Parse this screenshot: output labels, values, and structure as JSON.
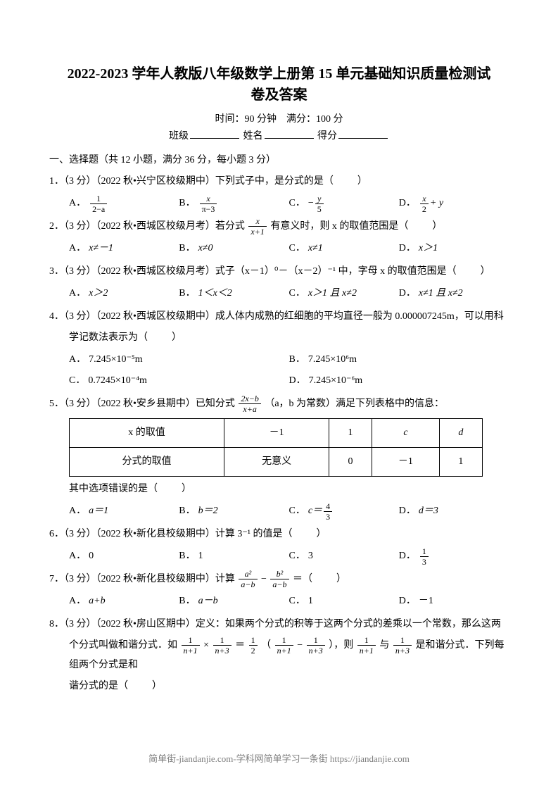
{
  "title_line1": "2022-2023 学年人教版八年级数学上册第 15 单元基础知识质量检测试",
  "title_line2": "卷及答案",
  "time_label": "时间：",
  "time_value": "90 分钟",
  "fullmark_label": "满分：",
  "fullmark_value": "100 分",
  "class_label": "班级",
  "name_label": "姓名",
  "score_label": "得分",
  "section1": "一、选择题（共 12 小题，满分 36 分，每小题 3 分）",
  "blank_paren": "（　　）",
  "q1": {
    "stem": "1．（3 分）（2022 秋•兴宁区校级期中）下列式子中，是分式的是",
    "A_label": "A．",
    "A_num": "1",
    "A_den": "2−a",
    "B_label": "B．",
    "B_num": "x",
    "B_den": "π−3",
    "C_label": "C．",
    "C_prefix": "−",
    "C_num": "y",
    "C_den": "5",
    "D_label": "D．",
    "D_num": "x",
    "D_den": "2",
    "D_suffix": " + y"
  },
  "q2": {
    "stem_a": "2．（3 分）（2022 秋•西城区校级月考）若分式 ",
    "frac_num": "x",
    "frac_den": "x+1",
    "stem_b": " 有意义时，则 x 的取值范围是",
    "A_label": "A．",
    "A": "x≠－1",
    "B_label": "B．",
    "B": "x≠0",
    "C_label": "C．",
    "C": "x≠1",
    "D_label": "D．",
    "D": "x＞1"
  },
  "q3": {
    "stem": "3．（3 分）（2022 秋•西城区校级月考）式子（x－1）⁰－（x－2）⁻¹ 中，字母 x 的取值范围是",
    "A_label": "A．",
    "A": "x＞2",
    "B_label": "B．",
    "B": "1＜x＜2",
    "C_label": "C．",
    "C": "x＞1 且 x≠2",
    "D_label": "D．",
    "D": "x≠1 且 x≠2"
  },
  "q4": {
    "stem1": "4．（3 分）（2022 秋•西城区校级期中）成人体内成熟的红细胞的平均直径一般为 0.000007245m，可以用科",
    "stem2": "学记数法表示为",
    "A_label": "A．",
    "A": "7.245×10⁻⁵m",
    "B_label": "B．",
    "B": "7.245×10⁶m",
    "C_label": "C．",
    "C": "0.7245×10⁻⁴m",
    "D_label": "D．",
    "D": "7.245×10⁻⁶m"
  },
  "q5": {
    "stem_a": "5．（3 分）（2022 秋•安乡县期中）已知分式 ",
    "frac_num": "2x−b",
    "frac_den": "x+a",
    "stem_b": "（a，b 为常数）满足下列表格中的信息：",
    "table": {
      "columns": [
        "x 的取值",
        "－1",
        "1",
        "c",
        "d"
      ],
      "row2": [
        "分式的取值",
        "无意义",
        "0",
        "－1",
        "1"
      ],
      "col_widths": [
        "22%",
        "19.5%",
        "19.5%",
        "19.5%",
        "19.5%"
      ]
    },
    "tail": "其中选项错误的是",
    "A_label": "A．",
    "A": "a＝1",
    "B_label": "B．",
    "B": "b＝2",
    "C_label": "C．",
    "C_prefix": "c＝",
    "C_num": "4",
    "C_den": "3",
    "D_label": "D．",
    "D": "d＝3"
  },
  "q6": {
    "stem": "6．（3 分）（2022 秋•新化县校级期中）计算 3⁻¹ 的值是",
    "A_label": "A．",
    "A": "0",
    "B_label": "B．",
    "B": "1",
    "C_label": "C．",
    "C": "3",
    "D_label": "D．",
    "D_num": "1",
    "D_den": "3"
  },
  "q7": {
    "stem_a": "7．（3 分）（2022 秋•新化县校级期中）计算 ",
    "f1_num": "a²",
    "f1_den": "a−b",
    "minus": " − ",
    "f2_num": "b²",
    "f2_den": "a−b",
    "stem_b": " ＝",
    "A_label": "A．",
    "A": "a+b",
    "B_label": "B．",
    "B": "a－b",
    "C_label": "C．",
    "C": "1",
    "D_label": "D．",
    "D": "－1"
  },
  "q8": {
    "stem1": "8．（3 分）（2022 秋•房山区期中）定义：如果两个分式的积等于这两个分式的差乘以一个常数，那么这两",
    "stem2a": "个分式叫做和谐分式．如 ",
    "ex1_num": "1",
    "ex1_den": "n+1",
    "times": " × ",
    "ex2_num": "1",
    "ex2_den": "n+3",
    "eq": " ＝ ",
    "half_num": "1",
    "half_den": "2",
    "lpar": "（",
    "ex3_num": "1",
    "ex3_den": "n+1",
    "minus": " − ",
    "ex4_num": "1",
    "ex4_den": "n+3",
    "rpar": "），则 ",
    "ex5_num": "1",
    "ex5_den": "n+1",
    "and": " 与 ",
    "ex6_num": "1",
    "ex6_den": "n+3",
    "stem2b": " 是和谐分式．下列每组两个分式是和",
    "stem3": "谐分式的是"
  },
  "footer": "简单街-jiandanjie.com-学科网简单学习一条街 https://jiandanjie.com"
}
